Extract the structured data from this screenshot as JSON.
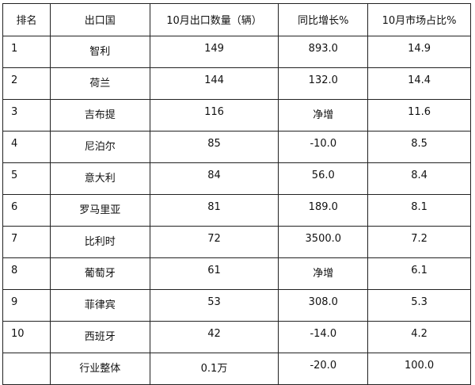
{
  "headers": [
    "排名",
    "出口国",
    "10月出口数量（辆）",
    "同比增长%",
    "10月市场占比%"
  ],
  "rows": [
    [
      "1",
      "智利",
      "149",
      "893.0",
      "14.9"
    ],
    [
      "2",
      "荷兰",
      "144",
      "132.0",
      "14.4"
    ],
    [
      "3",
      "吉布提",
      "116",
      "净增",
      "11.6"
    ],
    [
      "4",
      "尼泊尔",
      "85",
      "-10.0",
      "8.5"
    ],
    [
      "5",
      "意大利",
      "84",
      "56.0",
      "8.4"
    ],
    [
      "6",
      "罗马里亚",
      "81",
      "189.0",
      "8.1"
    ],
    [
      "7",
      "比利时",
      "72",
      "3500.0",
      "7.2"
    ],
    [
      "8",
      "葡萄牙",
      "61",
      "净增",
      "6.1"
    ],
    [
      "9",
      "菲律宾",
      "53",
      "308.0",
      "5.3"
    ],
    [
      "10",
      "西班牙",
      "42",
      "-14.0",
      "4.2"
    ],
    [
      "",
      "行业整体",
      "0.1万",
      "-20.0",
      "100.0"
    ]
  ]
}
